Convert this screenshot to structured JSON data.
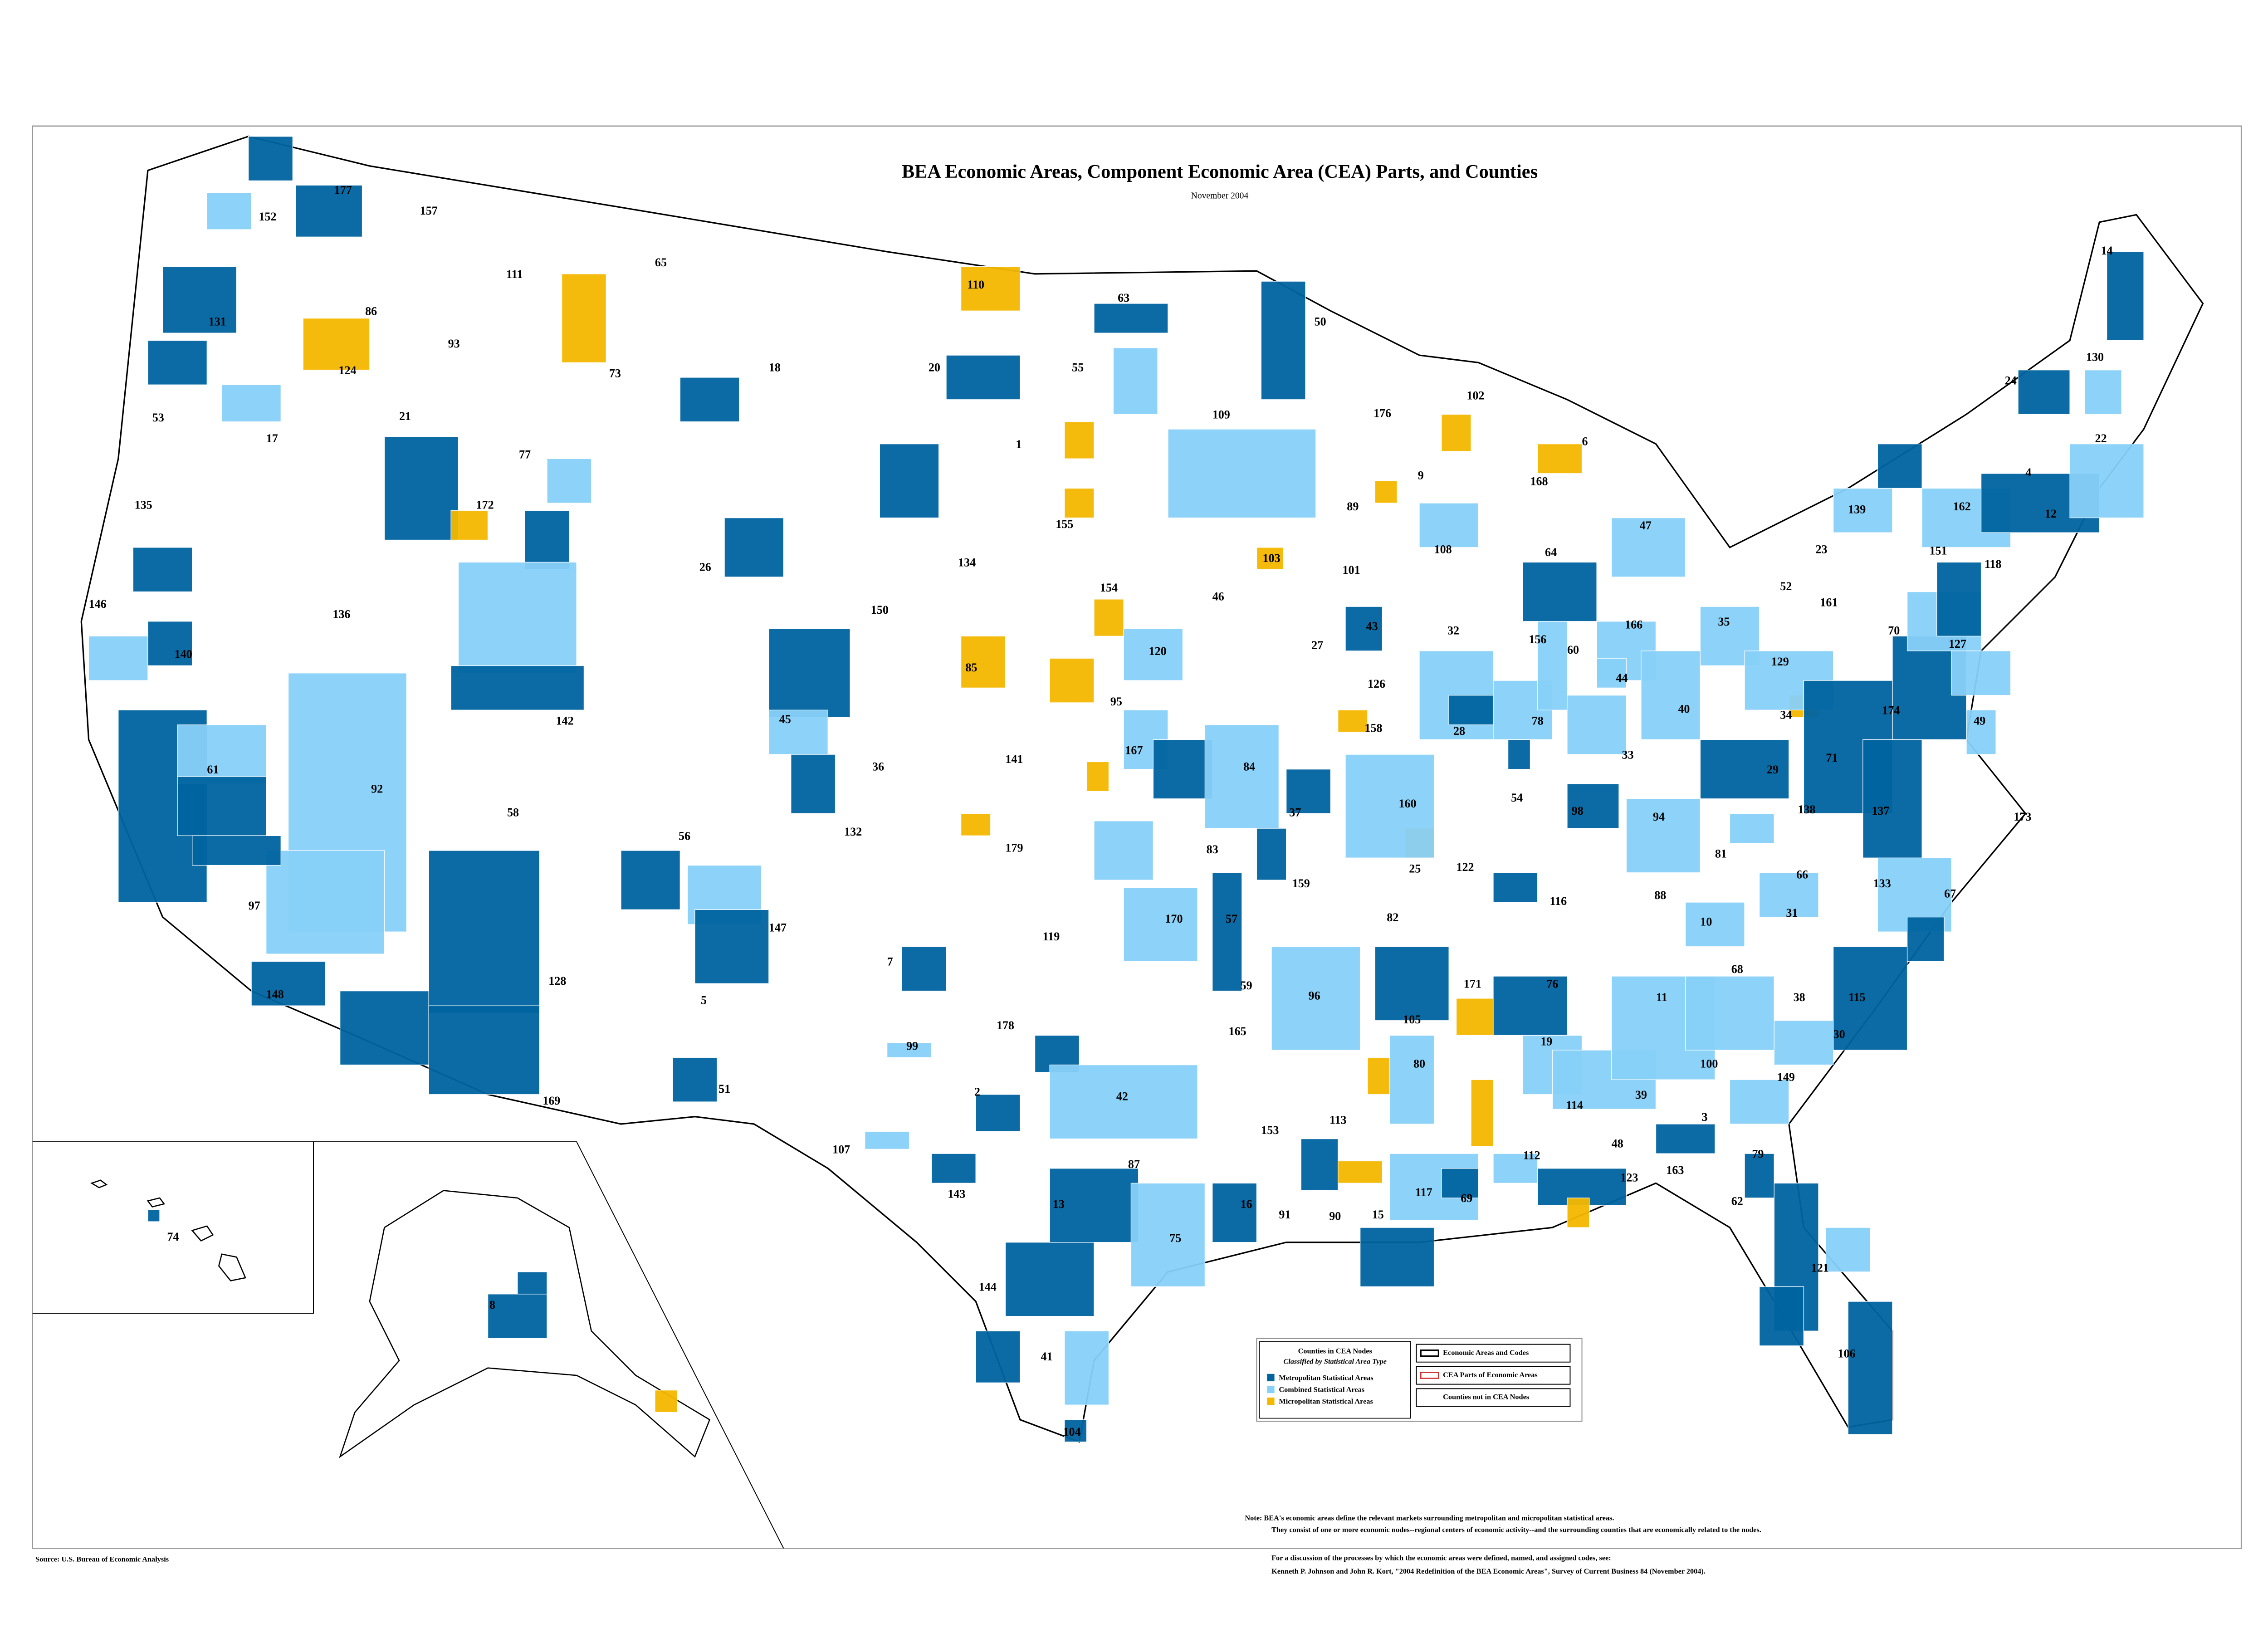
{
  "map": {
    "title": "BEA Economic Areas, Component Economic Area (CEA) Parts, and Counties",
    "subtitle": "November 2004",
    "area_codes": [
      "177",
      "152",
      "157",
      "65",
      "111",
      "110",
      "63",
      "50",
      "14",
      "86",
      "131",
      "93",
      "124",
      "73",
      "18",
      "20",
      "55",
      "130",
      "24",
      "176",
      "102",
      "109",
      "53",
      "17",
      "21",
      "77",
      "1",
      "6",
      "22",
      "168",
      "9",
      "4",
      "172",
      "155",
      "89",
      "162",
      "135",
      "139",
      "12",
      "26",
      "134",
      "103",
      "108",
      "64",
      "47",
      "23",
      "151",
      "118",
      "101",
      "154",
      "46",
      "52",
      "161",
      "136",
      "146",
      "150",
      "43",
      "32",
      "156",
      "166",
      "35",
      "70",
      "127",
      "140",
      "120",
      "27",
      "85",
      "60",
      "44",
      "129",
      "126",
      "95",
      "142",
      "40",
      "174",
      "49",
      "45",
      "158",
      "28",
      "78",
      "34",
      "33",
      "92",
      "61",
      "36",
      "141",
      "167",
      "84",
      "71",
      "29",
      "58",
      "132",
      "160",
      "37",
      "98",
      "94",
      "137",
      "173",
      "138",
      "54",
      "56",
      "179",
      "83",
      "81",
      "25",
      "122",
      "159",
      "116",
      "88",
      "66",
      "133",
      "31",
      "10",
      "67",
      "97",
      "147",
      "119",
      "170",
      "57",
      "82",
      "7",
      "128",
      "5",
      "148",
      "59",
      "171",
      "76",
      "68",
      "11",
      "38",
      "115",
      "96",
      "178",
      "165",
      "105",
      "99",
      "19",
      "30",
      "80",
      "100",
      "51",
      "2",
      "42",
      "169",
      "153",
      "113",
      "114",
      "149",
      "3",
      "107",
      "143",
      "87",
      "48",
      "79",
      "112",
      "123",
      "163",
      "13",
      "16",
      "91",
      "90",
      "15",
      "117",
      "69",
      "74",
      "62",
      "75",
      "121",
      "144",
      "8",
      "41",
      "106",
      "104",
      "39"
    ],
    "legend": {
      "title": "Counties in CEA Nodes",
      "subtitle": "Classified by Statistical Area Type",
      "items": [
        "Metropolitan Statistical Areas",
        "Combined Statistical Areas",
        "Micropolitan Statistical Areas"
      ],
      "boundaries": [
        "Economic Areas and Codes",
        "CEA Parts of Economic Areas",
        "Counties not in CEA Nodes"
      ]
    },
    "note": [
      "Note:  BEA's economic areas define the relevant markets surrounding metropolitan and micropolitan statistical areas.",
      "They consist of one or more economic nodes--regional centers of economic activity--and the surrounding counties that are economically related to the nodes."
    ],
    "reference": [
      "For a discussion of the processes by which the economic areas were defined, named, and assigned codes, see:",
      "Kenneth P. Johnson and John R. Kort, \"2004 Redefinition of the BEA Economic Areas\", Survey of Current Business 84 (November 2004)."
    ],
    "source": "Source:  U.S. Bureau of Economic Analysis"
  }
}
